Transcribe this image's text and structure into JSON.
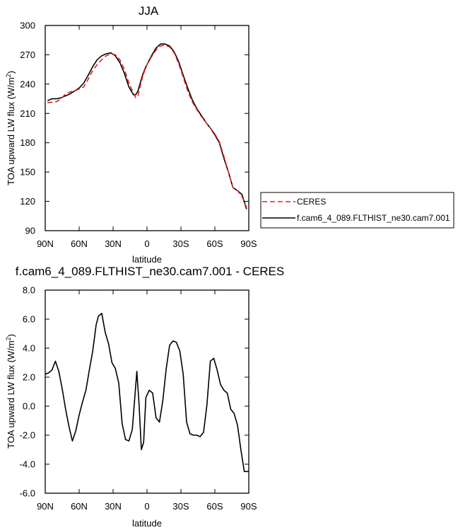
{
  "chart_data": [
    {
      "type": "line",
      "title": "JJA",
      "xlabel": "latitude",
      "ylabel": "TOA upward LW flux (W/m",
      "ylabel_sup": "2",
      "ylabel_close": ")",
      "xlim": [
        90,
        -90
      ],
      "ylim": [
        90,
        300
      ],
      "x_ticks": [
        90,
        60,
        30,
        0,
        -30,
        -60,
        -90
      ],
      "x_tick_labels": [
        "90N",
        "60N",
        "30N",
        "0",
        "30S",
        "60S",
        "90S"
      ],
      "y_ticks": [
        90,
        120,
        150,
        180,
        210,
        240,
        270,
        300
      ],
      "y_tick_labels": [
        "90",
        "120",
        "150",
        "180",
        "210",
        "240",
        "270",
        "300"
      ],
      "legend_position": "outside-right",
      "series": [
        {
          "name": "CERES",
          "color": "#e02020",
          "dash": "dashed",
          "x": [
            88,
            84,
            80,
            76,
            72,
            68,
            64,
            60,
            56,
            52,
            48,
            44,
            40,
            36,
            32,
            28,
            24,
            20,
            16,
            12,
            10,
            8,
            6,
            4,
            2,
            0,
            -4,
            -8,
            -12,
            -16,
            -20,
            -24,
            -28,
            -32,
            -36,
            -40,
            -44,
            -48,
            -52,
            -56,
            -60,
            -64,
            -68,
            -72,
            -76,
            -80,
            -84,
            -88
          ],
          "y": [
            221,
            221.5,
            222,
            225,
            230,
            232,
            233,
            235,
            237,
            245,
            254,
            260,
            265,
            269,
            271,
            270,
            265,
            255,
            241,
            231,
            226,
            228,
            238,
            247,
            254,
            260,
            268,
            275,
            279,
            280,
            278,
            272,
            261,
            247,
            233,
            222,
            214,
            207,
            201,
            195,
            189,
            181,
            166,
            150,
            134,
            131,
            125,
            114
          ]
        },
        {
          "name": "f.cam6_4_089.FLTHIST_ne30.cam7.001",
          "color": "#000000",
          "dash": "solid",
          "x": [
            88,
            84,
            80,
            76,
            72,
            68,
            64,
            60,
            56,
            52,
            48,
            44,
            40,
            36,
            32,
            28,
            24,
            20,
            16,
            12,
            10,
            8,
            6,
            4,
            2,
            0,
            -4,
            -8,
            -12,
            -16,
            -20,
            -24,
            -28,
            -32,
            -36,
            -40,
            -44,
            -48,
            -52,
            -56,
            -60,
            -64,
            -68,
            -72,
            -76,
            -80,
            -84,
            -88
          ],
          "y": [
            223,
            225,
            225,
            226,
            228,
            230,
            233,
            236,
            241,
            249,
            258,
            265,
            269,
            271,
            272,
            269,
            262,
            251,
            237,
            229,
            229,
            233,
            241,
            249,
            255,
            260,
            269,
            277,
            281,
            281,
            279,
            273,
            263,
            249,
            236,
            224,
            215,
            208,
            201,
            195,
            188,
            180,
            164,
            150,
            134,
            131,
            127,
            112
          ]
        }
      ]
    },
    {
      "type": "line",
      "title": "f.cam6_4_089.FLTHIST_ne30.cam7.001 - CERES",
      "xlabel": "latitude",
      "ylabel": "TOA upward LW flux (W/m",
      "ylabel_sup": "2",
      "ylabel_close": ")",
      "xlim": [
        90,
        -90
      ],
      "ylim": [
        -6,
        8
      ],
      "x_ticks": [
        90,
        60,
        30,
        0,
        -30,
        -60,
        -90
      ],
      "x_tick_labels": [
        "90N",
        "60N",
        "30N",
        "0",
        "30S",
        "60S",
        "90S"
      ],
      "y_ticks": [
        -6,
        -4,
        -2,
        0,
        2,
        4,
        6,
        8
      ],
      "y_tick_labels": [
        "-6.0",
        "-4.0",
        "-2.0",
        "0.0",
        "2.0",
        "4.0",
        "6.0",
        "8.0"
      ],
      "series": [
        {
          "color": "#000000",
          "x": [
            90,
            87,
            84,
            81,
            78,
            75,
            72,
            69,
            66,
            63,
            60,
            57,
            54,
            51,
            48,
            45,
            43,
            40,
            37,
            34,
            31,
            28,
            25,
            22,
            19,
            16,
            13,
            11,
            9,
            7,
            5,
            3,
            1,
            -2,
            -5,
            -8,
            -11,
            -14,
            -17,
            -20,
            -23,
            -26,
            -29,
            -32,
            -35,
            -38,
            -41,
            -44,
            -47,
            -50,
            -53,
            -56,
            -59,
            -62,
            -65,
            -68,
            -71,
            -74,
            -77,
            -80,
            -83,
            -86,
            -88,
            -90
          ],
          "y": [
            2.2,
            2.3,
            2.5,
            3.1,
            2.4,
            1.2,
            -0.2,
            -1.4,
            -2.4,
            -1.7,
            -0.6,
            0.3,
            1.1,
            2.5,
            3.8,
            5.6,
            6.2,
            6.4,
            5.1,
            4.3,
            3.0,
            2.6,
            1.6,
            -1.2,
            -2.3,
            -2.4,
            -1.6,
            0.4,
            2.4,
            0.1,
            -3.0,
            -2.5,
            0.6,
            1.1,
            0.9,
            -0.8,
            -1.1,
            0.4,
            2.6,
            4.2,
            4.5,
            4.4,
            3.8,
            2.2,
            -1.1,
            -1.9,
            -2.0,
            -2.0,
            -2.1,
            -1.8,
            0.1,
            3.1,
            3.3,
            2.5,
            1.5,
            1.1,
            0.9,
            -0.2,
            -0.5,
            -1.3,
            -3.0,
            -4.5,
            -4.5,
            -4.5
          ]
        }
      ]
    }
  ]
}
